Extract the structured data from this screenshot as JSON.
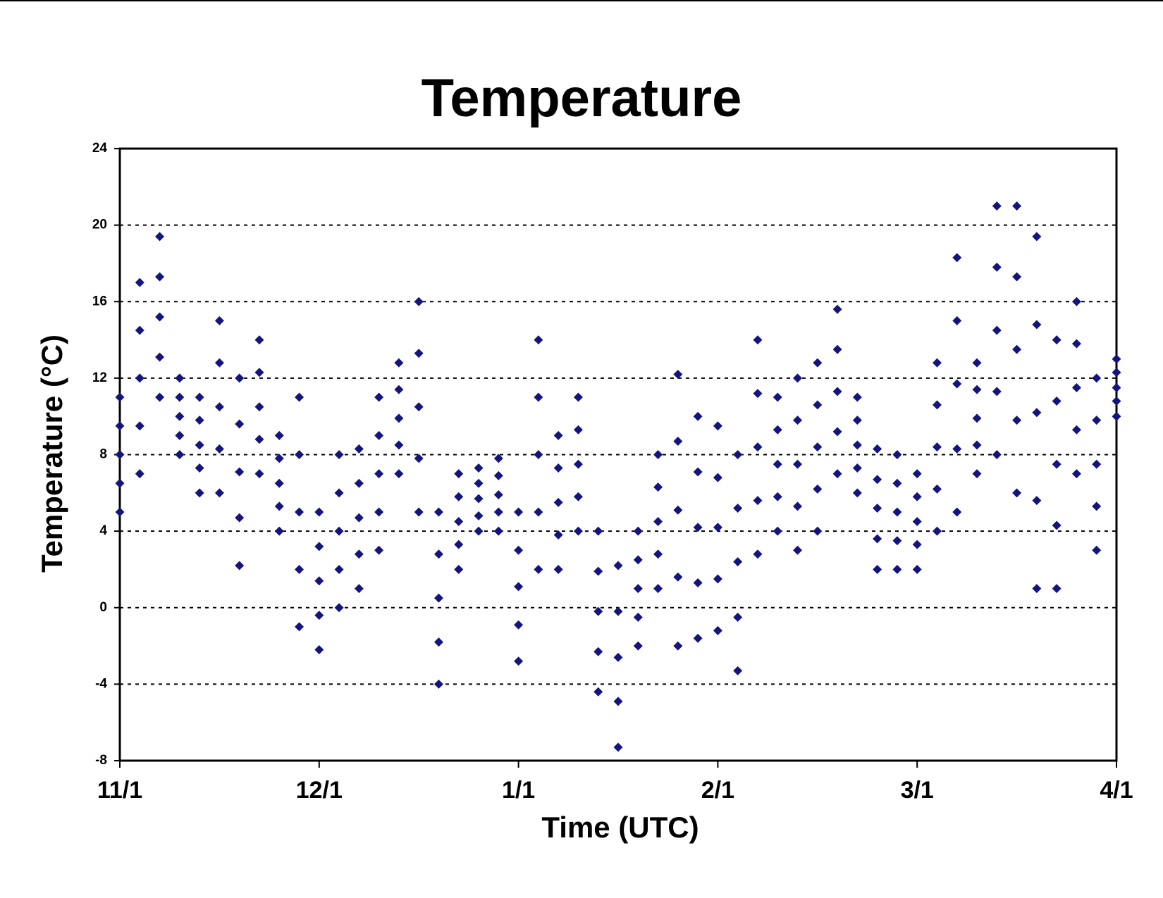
{
  "chart_data": {
    "type": "scatter",
    "title": "Temperature",
    "x_label": "Time (UTC)",
    "y_label": "Temperature (°C)",
    "color": "#14147f",
    "grid": true,
    "xlim": [
      0,
      5
    ],
    "xticks": [
      {
        "value": 0,
        "label": "11/1"
      },
      {
        "value": 1,
        "label": "12/1"
      },
      {
        "value": 2,
        "label": "1/1"
      },
      {
        "value": 3,
        "label": "2/1"
      },
      {
        "value": 4,
        "label": "3/1"
      },
      {
        "value": 5,
        "label": "4/1"
      }
    ],
    "ylim": [
      -8,
      24
    ],
    "yticks": [
      -8,
      -4,
      0,
      4,
      8,
      12,
      16,
      20,
      24
    ],
    "x": [
      0,
      0,
      0,
      0,
      0,
      0.1,
      0.1,
      0.1,
      0.1,
      0.1,
      0.2,
      0.2,
      0.2,
      0.2,
      0.2,
      0.3,
      0.3,
      0.3,
      0.3,
      0.3,
      0.4,
      0.4,
      0.4,
      0.4,
      0.4,
      0.5,
      0.5,
      0.5,
      0.5,
      0.5,
      0.6,
      0.6,
      0.6,
      0.6,
      0.6,
      0.7,
      0.7,
      0.7,
      0.7,
      0.7,
      0.8,
      0.8,
      0.8,
      0.8,
      0.8,
      0.9,
      0.9,
      0.9,
      0.9,
      0.9,
      1,
      1,
      1,
      1,
      1,
      1.1,
      1.1,
      1.1,
      1.1,
      1.1,
      1.2,
      1.2,
      1.2,
      1.2,
      1.2,
      1.3,
      1.3,
      1.3,
      1.3,
      1.3,
      1.4,
      1.4,
      1.4,
      1.4,
      1.4,
      1.5,
      1.5,
      1.5,
      1.5,
      1.5,
      1.6,
      1.6,
      1.6,
      1.6,
      1.6,
      1.7,
      1.7,
      1.7,
      1.7,
      1.7,
      1.8,
      1.8,
      1.8,
      1.8,
      1.8,
      1.9,
      1.9,
      1.9,
      1.9,
      1.9,
      2,
      2,
      2,
      2,
      2,
      2.1,
      2.1,
      2.1,
      2.1,
      2.1,
      2.2,
      2.2,
      2.2,
      2.2,
      2.2,
      2.3,
      2.3,
      2.3,
      2.3,
      2.3,
      2.4,
      2.4,
      2.4,
      2.4,
      2.4,
      2.5,
      2.5,
      2.5,
      2.5,
      2.5,
      2.6,
      2.6,
      2.6,
      2.6,
      2.6,
      2.7,
      2.7,
      2.7,
      2.7,
      2.7,
      2.8,
      2.8,
      2.8,
      2.8,
      2.8,
      2.9,
      2.9,
      2.9,
      2.9,
      2.9,
      3,
      3,
      3,
      3,
      3,
      3.1,
      3.1,
      3.1,
      3.1,
      3.1,
      3.2,
      3.2,
      3.2,
      3.2,
      3.2,
      3.3,
      3.3,
      3.3,
      3.3,
      3.3,
      3.4,
      3.4,
      3.4,
      3.4,
      3.4,
      3.5,
      3.5,
      3.5,
      3.5,
      3.5,
      3.6,
      3.6,
      3.6,
      3.6,
      3.6,
      3.7,
      3.7,
      3.7,
      3.7,
      3.7,
      3.8,
      3.8,
      3.8,
      3.8,
      3.8,
      3.9,
      3.9,
      3.9,
      3.9,
      3.9,
      4,
      4,
      4,
      4,
      4,
      4.1,
      4.1,
      4.1,
      4.1,
      4.1,
      4.2,
      4.2,
      4.2,
      4.2,
      4.2,
      4.3,
      4.3,
      4.3,
      4.3,
      4.3,
      4.4,
      4.4,
      4.4,
      4.4,
      4.4,
      4.5,
      4.5,
      4.5,
      4.5,
      4.5,
      4.6,
      4.6,
      4.6,
      4.6,
      4.6,
      4.7,
      4.7,
      4.7,
      4.7,
      4.7,
      4.8,
      4.8,
      4.8,
      4.8,
      4.8,
      4.9,
      4.9,
      4.9,
      4.9,
      4.9,
      5,
      5,
      5,
      5,
      5
    ],
    "values": [
      5,
      6.5,
      8,
      9.5,
      11,
      7,
      9.5,
      12,
      14.5,
      17,
      11,
      13.1,
      15.2,
      17.3,
      19.4,
      8,
      9,
      10,
      11,
      12,
      6,
      7.3,
      8.5,
      9.8,
      11,
      6,
      8.3,
      10.5,
      12.8,
      15,
      2.2,
      4.7,
      7.1,
      9.6,
      12,
      7,
      8.8,
      10.5,
      12.3,
      14,
      4,
      5.3,
      6.5,
      7.8,
      9,
      -1,
      2,
      5,
      8,
      11,
      -2.2,
      -0.4,
      1.4,
      3.2,
      5,
      0,
      2,
      4,
      6,
      8,
      1,
      2.8,
      4.7,
      6.5,
      8.3,
      3,
      5,
      7,
      9,
      11,
      7,
      8.5,
      9.9,
      11.4,
      12.8,
      5,
      7.8,
      10.5,
      13.3,
      16,
      -4,
      -1.8,
      0.5,
      2.8,
      5,
      2,
      3.3,
      4.5,
      5.8,
      7,
      4,
      4.8,
      5.7,
      6.5,
      7.3,
      4,
      5,
      5.9,
      6.9,
      7.8,
      -2.8,
      -0.9,
      1.1,
      3,
      5,
      2,
      5,
      8,
      11,
      14,
      2,
      3.8,
      5.5,
      7.3,
      9,
      4,
      5.8,
      7.5,
      9.3,
      11,
      -4.4,
      -2.3,
      -0.2,
      1.9,
      4,
      -7.3,
      -4.9,
      -2.6,
      -0.2,
      2.2,
      -2,
      -0.5,
      1,
      2.5,
      4,
      1,
      2.8,
      4.5,
      6.3,
      8,
      -2,
      1.6,
      5.1,
      8.7,
      12.2,
      -1.6,
      1.3,
      4.2,
      7.1,
      10,
      -1.2,
      1.5,
      4.2,
      6.8,
      9.5,
      -3.3,
      -0.5,
      2.4,
      5.2,
      8,
      2.8,
      5.6,
      8.4,
      11.2,
      14,
      4,
      5.8,
      7.5,
      9.3,
      11,
      3,
      5.3,
      7.5,
      9.8,
      12,
      4,
      6.2,
      8.4,
      10.6,
      12.8,
      7,
      9.2,
      11.3,
      13.5,
      15.6,
      6,
      7.3,
      8.5,
      9.8,
      11,
      2,
      3.6,
      5.2,
      6.7,
      8.3,
      2,
      3.5,
      5,
      6.5,
      8,
      2,
      3.3,
      4.5,
      5.8,
      7,
      4,
      6.2,
      8.4,
      10.6,
      12.8,
      5,
      8.3,
      11.7,
      15,
      18.3,
      7,
      8.5,
      9.9,
      11.4,
      12.8,
      8,
      11.3,
      14.5,
      17.8,
      21,
      6,
      9.8,
      13.5,
      17.3,
      21,
      1,
      5.6,
      10.2,
      14.8,
      19.4,
      1,
      4.3,
      7.5,
      10.8,
      14,
      7,
      9.3,
      11.5,
      13.8,
      16,
      3,
      5.3,
      7.5,
      9.8,
      12,
      10,
      10.8,
      11.5,
      12.3,
      13
    ]
  }
}
